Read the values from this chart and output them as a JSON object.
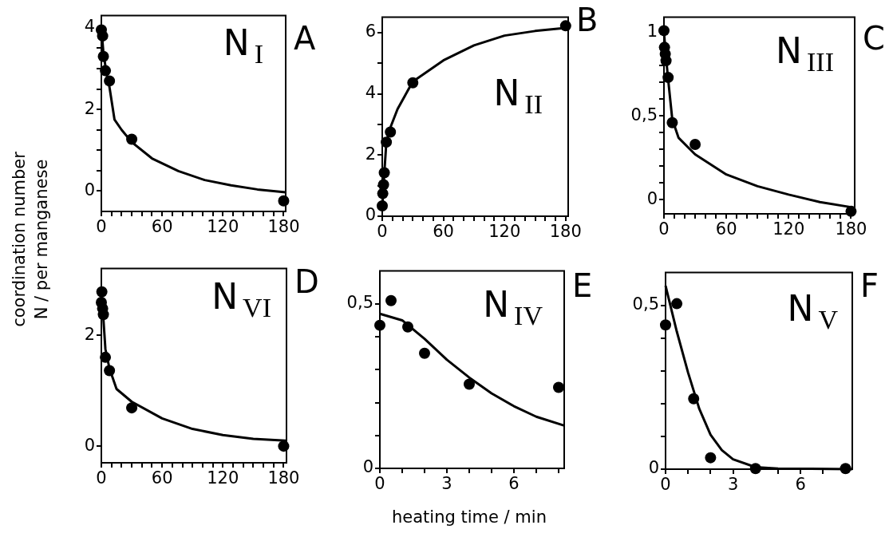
{
  "chart_data": [
    {
      "type": "scatter",
      "title": "N$_{I}$",
      "annotations": [
        "A"
      ],
      "ylabel": "coordination number\nN / per manganese",
      "xlim": [
        0,
        182
      ],
      "ylim": [
        -0.5,
        4.3
      ],
      "xticks": [
        0,
        {
          "value": 10,
          "label": null
        },
        {
          "value": 20,
          "label": null
        },
        {
          "value": 30,
          "label": null
        },
        {
          "value": 40,
          "label": null
        },
        {
          "value": 50,
          "label": null
        },
        60,
        {
          "value": 70,
          "label": null
        },
        {
          "value": 80,
          "label": null
        },
        {
          "value": 90,
          "label": null
        },
        {
          "value": 100,
          "label": null
        },
        {
          "value": 110,
          "label": null
        },
        120,
        {
          "value": 130,
          "label": null
        },
        {
          "value": 140,
          "label": null
        },
        {
          "value": 150,
          "label": null
        },
        {
          "value": 160,
          "label": null
        },
        {
          "value": 170,
          "label": null
        },
        180
      ],
      "yticks": [
        0,
        {
          "value": 0.5,
          "label": null
        },
        {
          "value": 1,
          "label": null
        },
        {
          "value": 1.5,
          "label": null
        },
        2,
        {
          "value": 2.5,
          "label": null
        },
        {
          "value": 3,
          "label": null
        },
        {
          "value": 3.5,
          "label": null
        },
        4
      ],
      "grid": false,
      "marker": "circle",
      "series": [
        {
          "type": "scatter",
          "color": "#000000",
          "x": [
            0,
            1.25,
            2,
            4,
            8,
            30,
            180
          ],
          "values": [
            3.95,
            3.8,
            3.3,
            2.95,
            2.7,
            1.27,
            -0.24
          ]
        },
        {
          "type": "line",
          "color": "#000000",
          "marker": "none",
          "x": [
            0,
            2,
            5,
            8,
            13,
            20,
            30,
            50,
            76,
            102,
            128,
            154,
            182
          ],
          "values": [
            4.0,
            3.4,
            2.9,
            2.55,
            1.75,
            1.5,
            1.2,
            0.8,
            0.49,
            0.27,
            0.14,
            0.04,
            -0.03
          ]
        }
      ]
    },
    {
      "type": "scatter",
      "title": "N$_{II}$",
      "annotations": [
        "B"
      ],
      "xlim": [
        0,
        182.5
      ],
      "ylim": [
        0,
        6.5
      ],
      "xticks": [
        0,
        {
          "value": 10,
          "label": null
        },
        {
          "value": 20,
          "label": null
        },
        {
          "value": 30,
          "label": null
        },
        {
          "value": 40,
          "label": null
        },
        {
          "value": 50,
          "label": null
        },
        60,
        {
          "value": 70,
          "label": null
        },
        {
          "value": 80,
          "label": null
        },
        {
          "value": 90,
          "label": null
        },
        {
          "value": 100,
          "label": null
        },
        {
          "value": 110,
          "label": null
        },
        120,
        {
          "value": 130,
          "label": null
        },
        {
          "value": 140,
          "label": null
        },
        {
          "value": 150,
          "label": null
        },
        {
          "value": 160,
          "label": null
        },
        {
          "value": 170,
          "label": null
        },
        180
      ],
      "yticks": [
        0,
        {
          "value": 1,
          "label": null
        },
        2,
        {
          "value": 3,
          "label": null
        },
        4,
        {
          "value": 5,
          "label": null
        },
        6
      ],
      "grid": false,
      "marker": "circle",
      "series": [
        {
          "type": "scatter",
          "color": "#000000",
          "x": [
            0,
            0.5,
            1.25,
            2,
            4,
            8,
            30,
            180
          ],
          "values": [
            0.34,
            0.74,
            1.03,
            1.42,
            2.42,
            2.75,
            4.36,
            6.22
          ]
        },
        {
          "type": "line",
          "color": "#000000",
          "marker": "none",
          "x": [
            0,
            2,
            4,
            8,
            15,
            30,
            60,
            90,
            120,
            150,
            180
          ],
          "values": [
            0.3,
            1.4,
            2.4,
            2.9,
            3.5,
            4.4,
            5.09,
            5.58,
            5.9,
            6.05,
            6.15
          ]
        }
      ]
    },
    {
      "type": "scatter",
      "title": "N$_{III}$",
      "annotations": [
        "C"
      ],
      "xlim": [
        0,
        183.5
      ],
      "ylim": [
        -0.085,
        1.09
      ],
      "xticks": [
        0,
        {
          "value": 10,
          "label": null
        },
        {
          "value": 20,
          "label": null
        },
        {
          "value": 30,
          "label": null
        },
        {
          "value": 40,
          "label": null
        },
        {
          "value": 50,
          "label": null
        },
        60,
        {
          "value": 70,
          "label": null
        },
        {
          "value": 80,
          "label": null
        },
        {
          "value": 90,
          "label": null
        },
        {
          "value": 100,
          "label": null
        },
        {
          "value": 110,
          "label": null
        },
        120,
        {
          "value": 130,
          "label": null
        },
        {
          "value": 140,
          "label": null
        },
        {
          "value": 150,
          "label": null
        },
        {
          "value": 160,
          "label": null
        },
        {
          "value": 170,
          "label": null
        },
        180
      ],
      "yticks": [
        0,
        {
          "value": 0.1,
          "label": null
        },
        {
          "value": 0.2,
          "label": null
        },
        {
          "value": 0.3,
          "label": null
        },
        {
          "value": 0.4,
          "label": null
        },
        {
          "value": 0.5,
          "label": "0,5"
        },
        {
          "value": 0.6,
          "label": null
        },
        {
          "value": 0.7,
          "label": null
        },
        {
          "value": 0.8,
          "label": null
        },
        {
          "value": 0.9,
          "label": null
        },
        1
      ],
      "grid": false,
      "marker": "circle",
      "series": [
        {
          "type": "scatter",
          "color": "#000000",
          "x": [
            0,
            0.5,
            1.25,
            2,
            4,
            8,
            30,
            180
          ],
          "values": [
            1.01,
            0.91,
            0.87,
            0.83,
            0.73,
            0.46,
            0.33,
            -0.07
          ]
        },
        {
          "type": "line",
          "color": "#000000",
          "marker": "none",
          "x": [
            0,
            2,
            4,
            8,
            14,
            30,
            60,
            90,
            120,
            150,
            180
          ],
          "values": [
            1.0,
            0.85,
            0.72,
            0.48,
            0.37,
            0.27,
            0.15,
            0.08,
            0.03,
            -0.015,
            -0.045
          ]
        }
      ]
    },
    {
      "type": "scatter",
      "title": "N$_{VI}$",
      "annotations": [
        "D"
      ],
      "xlim": [
        0,
        182.8
      ],
      "ylim": [
        -0.3,
        3.2
      ],
      "xticks": [
        0,
        {
          "value": 10,
          "label": null
        },
        {
          "value": 20,
          "label": null
        },
        {
          "value": 30,
          "label": null
        },
        {
          "value": 40,
          "label": null
        },
        {
          "value": 50,
          "label": null
        },
        60,
        {
          "value": 70,
          "label": null
        },
        {
          "value": 80,
          "label": null
        },
        {
          "value": 90,
          "label": null
        },
        {
          "value": 100,
          "label": null
        },
        {
          "value": 110,
          "label": null
        },
        120,
        {
          "value": 130,
          "label": null
        },
        {
          "value": 140,
          "label": null
        },
        {
          "value": 150,
          "label": null
        },
        {
          "value": 160,
          "label": null
        },
        {
          "value": 170,
          "label": null
        },
        180
      ],
      "yticks": [
        0,
        2
      ],
      "grid": false,
      "marker": "circle",
      "series": [
        {
          "type": "scatter",
          "color": "#000000",
          "x": [
            0,
            0.5,
            1.25,
            2,
            4,
            8,
            30,
            180
          ],
          "values": [
            2.59,
            2.78,
            2.48,
            2.37,
            1.6,
            1.36,
            0.69,
            0
          ]
        },
        {
          "type": "line",
          "color": "#000000",
          "marker": "none",
          "x": [
            0,
            2,
            4,
            8,
            15,
            30,
            60,
            90,
            120,
            150,
            182
          ],
          "values": [
            2.7,
            2.3,
            1.75,
            1.4,
            1.03,
            0.8,
            0.5,
            0.31,
            0.2,
            0.13,
            0.1
          ]
        }
      ]
    },
    {
      "type": "scatter",
      "title": "N$_{IV}$",
      "annotations": [
        "E"
      ],
      "xlabel": "heating time / min",
      "xlim": [
        0,
        8.25
      ],
      "ylim": [
        0,
        0.6
      ],
      "xticks": [
        0,
        {
          "value": 1,
          "label": null
        },
        {
          "value": 2,
          "label": null
        },
        3,
        {
          "value": 4,
          "label": null
        },
        {
          "value": 5,
          "label": null
        },
        6,
        {
          "value": 7,
          "label": null
        },
        {
          "value": 8,
          "label": null
        }
      ],
      "yticks": [
        0,
        {
          "value": 0.1,
          "label": null
        },
        {
          "value": 0.2,
          "label": null
        },
        {
          "value": 0.3,
          "label": null
        },
        {
          "value": 0.4,
          "label": null
        },
        {
          "value": 0.5,
          "label": "0,5"
        }
      ],
      "grid": false,
      "marker": "circle",
      "series": [
        {
          "type": "scatter",
          "color": "#000000",
          "x": [
            0,
            0.5,
            1.25,
            2,
            4,
            8
          ],
          "values": [
            0.435,
            0.51,
            0.43,
            0.35,
            0.256,
            0.246
          ]
        },
        {
          "type": "line",
          "color": "#000000",
          "marker": "none",
          "x": [
            0,
            1,
            2,
            3,
            4,
            5,
            6,
            7,
            8.25
          ],
          "values": [
            0.47,
            0.45,
            0.394,
            0.33,
            0.276,
            0.228,
            0.189,
            0.157,
            0.13
          ]
        }
      ]
    },
    {
      "type": "scatter",
      "title": "N$_{V}$",
      "annotations": [
        "F"
      ],
      "xlim": [
        0,
        8.3
      ],
      "ylim": [
        0,
        0.6
      ],
      "xticks": [
        0,
        {
          "value": 1,
          "label": null
        },
        {
          "value": 2,
          "label": null
        },
        3,
        {
          "value": 4,
          "label": null
        },
        {
          "value": 5,
          "label": null
        },
        6,
        {
          "value": 7,
          "label": null
        },
        {
          "value": 8,
          "label": null
        }
      ],
      "yticks": [
        0,
        {
          "value": 0.1,
          "label": null
        },
        {
          "value": 0.2,
          "label": null
        },
        {
          "value": 0.3,
          "label": null
        },
        {
          "value": 0.4,
          "label": null
        },
        {
          "value": 0.5,
          "label": "0,5"
        }
      ],
      "grid": false,
      "marker": "circle",
      "series": [
        {
          "type": "scatter",
          "color": "#000000",
          "x": [
            0,
            0.5,
            1.25,
            2,
            4,
            8
          ],
          "values": [
            0.44,
            0.505,
            0.215,
            0.035,
            0.002,
            0.002
          ]
        },
        {
          "type": "line",
          "color": "#000000",
          "marker": "none",
          "x": [
            0,
            0.5,
            1,
            1.5,
            2,
            2.5,
            3,
            4,
            5,
            8.3
          ],
          "values": [
            0.56,
            0.42,
            0.295,
            0.184,
            0.105,
            0.058,
            0.03,
            0.006,
            0.002,
            0
          ]
        }
      ]
    }
  ]
}
